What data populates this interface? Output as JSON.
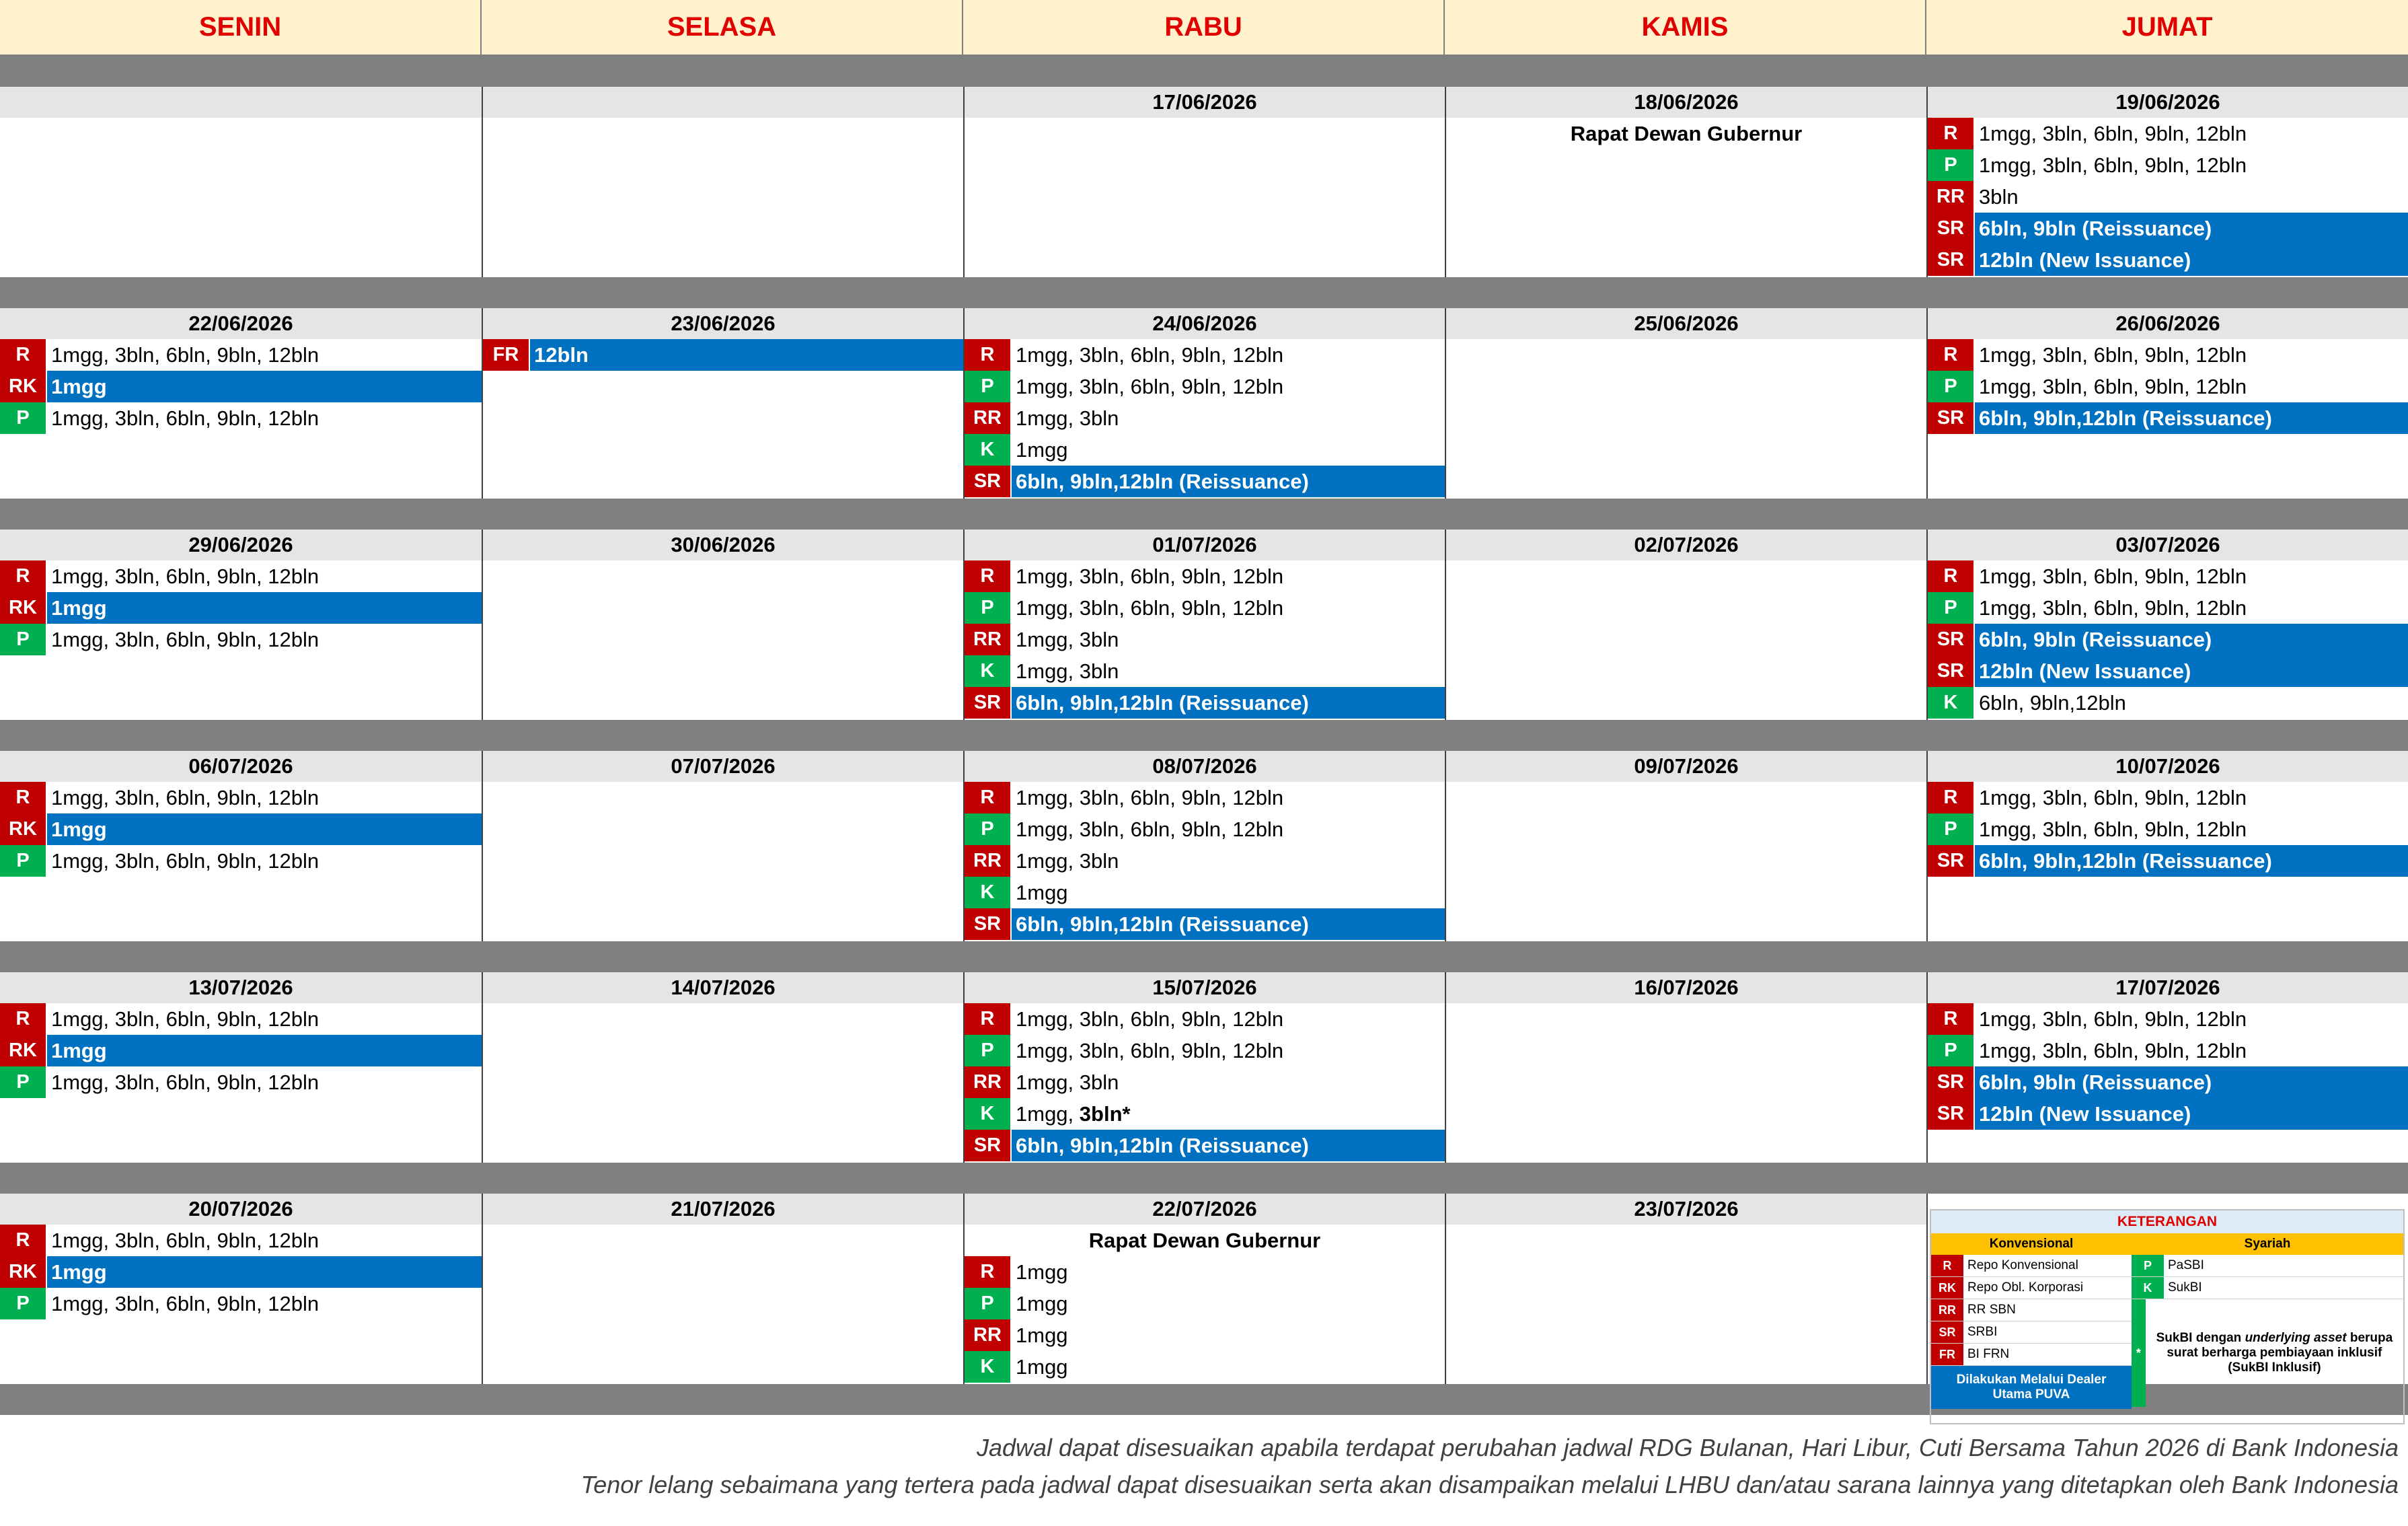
{
  "colors": {
    "header_bg": "#fff2cc",
    "header_text": "#e00000",
    "conventional": "#c00000",
    "sharia": "#00b050",
    "highlight": "#0070c0",
    "date_bg": "#e5e5e5",
    "spacer": "#808080"
  },
  "days": [
    "SENIN",
    "SELASA",
    "RABU",
    "KAMIS",
    "JUMAT"
  ],
  "weeks": [
    {
      "cells": [
        {
          "date": "",
          "items": []
        },
        {
          "date": "",
          "items": []
        },
        {
          "date": "17/06/2026",
          "items": []
        },
        {
          "date": "18/06/2026",
          "event": "Rapat Dewan Gubernur",
          "items": []
        },
        {
          "date": "19/06/2026",
          "items": [
            {
              "tag": "R",
              "color": "red",
              "text": "1mgg, 3bln, 6bln, 9bln, 12bln",
              "hl": false
            },
            {
              "tag": "P",
              "color": "green",
              "text": "1mgg, 3bln, 6bln, 9bln, 12bln",
              "hl": false
            },
            {
              "tag": "RR",
              "color": "red",
              "text": "3bln",
              "hl": false
            },
            {
              "tag": "SR",
              "color": "red",
              "text": "6bln, 9bln (Reissuance)",
              "hl": true
            },
            {
              "tag": "SR",
              "color": "red",
              "text": "12bln (New Issuance)",
              "hl": true
            }
          ]
        }
      ]
    },
    {
      "cells": [
        {
          "date": "22/06/2026",
          "items": [
            {
              "tag": "R",
              "color": "red",
              "text": "1mgg, 3bln, 6bln, 9bln, 12bln",
              "hl": false
            },
            {
              "tag": "RK",
              "color": "red",
              "text": "1mgg",
              "hl": true
            },
            {
              "tag": "P",
              "color": "green",
              "text": "1mgg, 3bln, 6bln, 9bln, 12bln",
              "hl": false
            }
          ]
        },
        {
          "date": "23/06/2026",
          "items": [
            {
              "tag": "FR",
              "color": "red",
              "text": "12bln",
              "hl": true
            }
          ]
        },
        {
          "date": "24/06/2026",
          "items": [
            {
              "tag": "R",
              "color": "red",
              "text": "1mgg, 3bln, 6bln, 9bln, 12bln",
              "hl": false
            },
            {
              "tag": "P",
              "color": "green",
              "text": "1mgg, 3bln, 6bln, 9bln, 12bln",
              "hl": false
            },
            {
              "tag": "RR",
              "color": "red",
              "text": "1mgg, 3bln",
              "hl": false
            },
            {
              "tag": "K",
              "color": "green",
              "text": "1mgg",
              "hl": false
            },
            {
              "tag": "SR",
              "color": "red",
              "text": "6bln, 9bln,12bln (Reissuance)",
              "hl": true
            }
          ]
        },
        {
          "date": "25/06/2026",
          "items": []
        },
        {
          "date": "26/06/2026",
          "items": [
            {
              "tag": "R",
              "color": "red",
              "text": "1mgg, 3bln, 6bln, 9bln, 12bln",
              "hl": false
            },
            {
              "tag": "P",
              "color": "green",
              "text": "1mgg, 3bln, 6bln, 9bln, 12bln",
              "hl": false
            },
            {
              "tag": "SR",
              "color": "red",
              "text": "6bln, 9bln,12bln (Reissuance)",
              "hl": true
            }
          ]
        }
      ]
    },
    {
      "cells": [
        {
          "date": "29/06/2026",
          "items": [
            {
              "tag": "R",
              "color": "red",
              "text": "1mgg, 3bln, 6bln, 9bln, 12bln",
              "hl": false
            },
            {
              "tag": "RK",
              "color": "red",
              "text": "1mgg",
              "hl": true
            },
            {
              "tag": "P",
              "color": "green",
              "text": "1mgg, 3bln, 6bln, 9bln, 12bln",
              "hl": false
            }
          ]
        },
        {
          "date": "30/06/2026",
          "items": []
        },
        {
          "date": "01/07/2026",
          "items": [
            {
              "tag": "R",
              "color": "red",
              "text": "1mgg, 3bln, 6bln, 9bln, 12bln",
              "hl": false
            },
            {
              "tag": "P",
              "color": "green",
              "text": "1mgg, 3bln, 6bln, 9bln, 12bln",
              "hl": false
            },
            {
              "tag": "RR",
              "color": "red",
              "text": "1mgg, 3bln",
              "hl": false
            },
            {
              "tag": "K",
              "color": "green",
              "text": "1mgg, 3bln",
              "hl": false
            },
            {
              "tag": "SR",
              "color": "red",
              "text": "6bln, 9bln,12bln (Reissuance)",
              "hl": true
            }
          ]
        },
        {
          "date": "02/07/2026",
          "items": []
        },
        {
          "date": "03/07/2026",
          "items": [
            {
              "tag": "R",
              "color": "red",
              "text": "1mgg, 3bln, 6bln, 9bln, 12bln",
              "hl": false
            },
            {
              "tag": "P",
              "color": "green",
              "text": "1mgg, 3bln, 6bln, 9bln, 12bln",
              "hl": false
            },
            {
              "tag": "SR",
              "color": "red",
              "text": "6bln, 9bln (Reissuance)",
              "hl": true
            },
            {
              "tag": "SR",
              "color": "red",
              "text": "12bln (New Issuance)",
              "hl": true
            },
            {
              "tag": "K",
              "color": "green",
              "text": "6bln, 9bln,12bln",
              "hl": false
            }
          ]
        }
      ]
    },
    {
      "cells": [
        {
          "date": "06/07/2026",
          "items": [
            {
              "tag": "R",
              "color": "red",
              "text": "1mgg, 3bln, 6bln, 9bln, 12bln",
              "hl": false
            },
            {
              "tag": "RK",
              "color": "red",
              "text": "1mgg",
              "hl": true
            },
            {
              "tag": "P",
              "color": "green",
              "text": "1mgg, 3bln, 6bln, 9bln, 12bln",
              "hl": false
            }
          ]
        },
        {
          "date": "07/07/2026",
          "items": []
        },
        {
          "date": "08/07/2026",
          "items": [
            {
              "tag": "R",
              "color": "red",
              "text": "1mgg, 3bln, 6bln, 9bln, 12bln",
              "hl": false
            },
            {
              "tag": "P",
              "color": "green",
              "text": "1mgg, 3bln, 6bln, 9bln, 12bln",
              "hl": false
            },
            {
              "tag": "RR",
              "color": "red",
              "text": "1mgg, 3bln",
              "hl": false
            },
            {
              "tag": "K",
              "color": "green",
              "text": "1mgg",
              "hl": false
            },
            {
              "tag": "SR",
              "color": "red",
              "text": "6bln, 9bln,12bln (Reissuance)",
              "hl": true
            }
          ]
        },
        {
          "date": "09/07/2026",
          "items": []
        },
        {
          "date": "10/07/2026",
          "items": [
            {
              "tag": "R",
              "color": "red",
              "text": "1mgg, 3bln, 6bln, 9bln, 12bln",
              "hl": false
            },
            {
              "tag": "P",
              "color": "green",
              "text": "1mgg, 3bln, 6bln, 9bln, 12bln",
              "hl": false
            },
            {
              "tag": "SR",
              "color": "red",
              "text": "6bln, 9bln,12bln (Reissuance)",
              "hl": true
            }
          ]
        }
      ]
    },
    {
      "cells": [
        {
          "date": "13/07/2026",
          "items": [
            {
              "tag": "R",
              "color": "red",
              "text": "1mgg, 3bln, 6bln, 9bln, 12bln",
              "hl": false
            },
            {
              "tag": "RK",
              "color": "red",
              "text": "1mgg",
              "hl": true
            },
            {
              "tag": "P",
              "color": "green",
              "text": "1mgg, 3bln, 6bln, 9bln, 12bln",
              "hl": false
            }
          ]
        },
        {
          "date": "14/07/2026",
          "items": []
        },
        {
          "date": "15/07/2026",
          "items": [
            {
              "tag": "R",
              "color": "red",
              "text": "1mgg, 3bln, 6bln, 9bln, 12bln",
              "hl": false
            },
            {
              "tag": "P",
              "color": "green",
              "text": "1mgg, 3bln, 6bln, 9bln, 12bln",
              "hl": false
            },
            {
              "tag": "RR",
              "color": "red",
              "text": "1mgg, 3bln",
              "hl": false
            },
            {
              "tag": "K",
              "color": "green",
              "text": "1mgg, ",
              "bold_suffix": "3bln*",
              "hl": false
            },
            {
              "tag": "SR",
              "color": "red",
              "text": "6bln, 9bln,12bln (Reissuance)",
              "hl": true
            }
          ]
        },
        {
          "date": "16/07/2026",
          "items": []
        },
        {
          "date": "17/07/2026",
          "items": [
            {
              "tag": "R",
              "color": "red",
              "text": "1mgg, 3bln, 6bln, 9bln, 12bln",
              "hl": false
            },
            {
              "tag": "P",
              "color": "green",
              "text": "1mgg, 3bln, 6bln, 9bln, 12bln",
              "hl": false
            },
            {
              "tag": "SR",
              "color": "red",
              "text": "6bln, 9bln (Reissuance)",
              "hl": true
            },
            {
              "tag": "SR",
              "color": "red",
              "text": "12bln (New Issuance)",
              "hl": true
            }
          ]
        }
      ]
    },
    {
      "cells": [
        {
          "date": "20/07/2026",
          "items": [
            {
              "tag": "R",
              "color": "red",
              "text": "1mgg, 3bln, 6bln, 9bln, 12bln",
              "hl": false
            },
            {
              "tag": "RK",
              "color": "red",
              "text": "1mgg",
              "hl": true
            },
            {
              "tag": "P",
              "color": "green",
              "text": "1mgg, 3bln, 6bln, 9bln, 12bln",
              "hl": false
            }
          ]
        },
        {
          "date": "21/07/2026",
          "items": []
        },
        {
          "date": "22/07/2026",
          "event": "Rapat Dewan Gubernur",
          "items": [
            {
              "tag": "R",
              "color": "red",
              "text": "1mgg",
              "hl": false
            },
            {
              "tag": "P",
              "color": "green",
              "text": "1mgg",
              "hl": false
            },
            {
              "tag": "RR",
              "color": "red",
              "text": "1mgg",
              "hl": false
            },
            {
              "tag": "K",
              "color": "green",
              "text": "1mgg",
              "hl": false
            }
          ]
        },
        {
          "date": "23/07/2026",
          "items": []
        },
        {
          "date": "",
          "legend": true,
          "items": []
        }
      ]
    }
  ],
  "legend": {
    "title": "KETERANGAN",
    "conv_header": "Konvensional",
    "sharia_header": "Syariah",
    "conv": [
      {
        "tag": "R",
        "text": "Repo Konvensional"
      },
      {
        "tag": "RK",
        "text": "Repo Obl. Korporasi"
      },
      {
        "tag": "RR",
        "text": "RR SBN"
      },
      {
        "tag": "SR",
        "text": "SRBI"
      },
      {
        "tag": "FR",
        "text": "BI FRN"
      }
    ],
    "conv_note": "Dilakukan Melalui Dealer Utama PUVA",
    "sharia": [
      {
        "tag": "P",
        "text": "PaSBI"
      },
      {
        "tag": "K",
        "text": "SukBI"
      }
    ],
    "star": "*",
    "sharia_note_a": "SukBI dengan ",
    "sharia_note_em": "underlying asset",
    "sharia_note_b": " berupa surat berharga pembiayaan inklusif (SukBI Inklusif)"
  },
  "footer": [
    "Jadwal dapat disesuaikan apabila terdapat perubahan jadwal RDG Bulanan, Hari Libur, Cuti Bersama Tahun 2026 di Bank Indonesia",
    "Tenor lelang sebaimana yang tertera pada jadwal dapat disesuaikan serta akan disampaikan melalui LHBU dan/atau sarana lainnya yang ditetapkan oleh Bank Indonesia"
  ]
}
